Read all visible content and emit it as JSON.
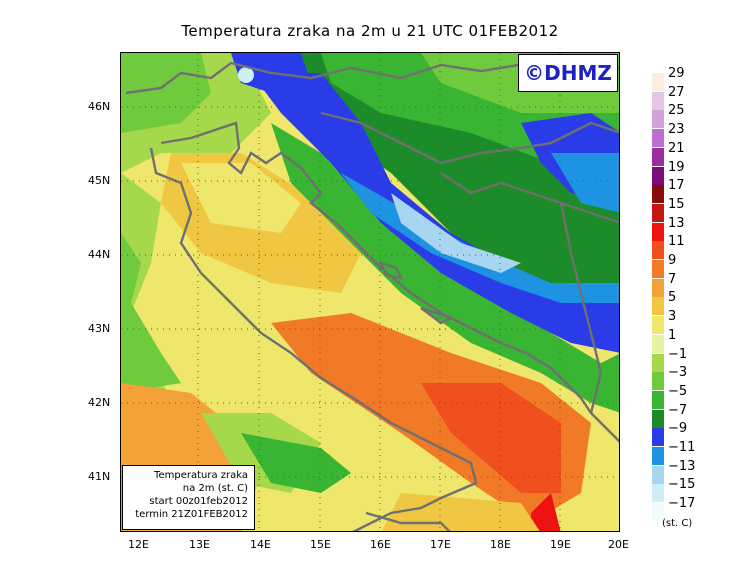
{
  "title": "Temperatura zraka na 2m u 21 UTC 01FEB2012",
  "logo_text": "©DHMZ",
  "info_box": {
    "line1": "Temperatura zraka",
    "line2": "na 2m (st. C)",
    "line3": "start 00z01feb2012",
    "line4": "termin 21Z01FEB2012"
  },
  "y_axis_labels": [
    "46N",
    "45N",
    "44N",
    "43N",
    "42N",
    "41N"
  ],
  "x_axis_labels": [
    "12E",
    "13E",
    "14E",
    "15E",
    "16E",
    "17E",
    "18E",
    "19E",
    "20E"
  ],
  "legend": {
    "unit": "(st. C)",
    "labels": [
      "29",
      "27",
      "25",
      "23",
      "21",
      "19",
      "17",
      "15",
      "13",
      "11",
      "9",
      "7",
      "5",
      "3",
      "1",
      "−1",
      "−3",
      "−5",
      "−7",
      "−9",
      "−11",
      "−13",
      "−15",
      "−17"
    ],
    "colors": [
      "#fbeede",
      "#e3c8e6",
      "#d3a2dd",
      "#bb6fce",
      "#9c2d9f",
      "#7c0a7a",
      "#8a0b0b",
      "#c41414",
      "#ee1313",
      "#f0501d",
      "#f07a28",
      "#f2a236",
      "#f0c742",
      "#efe66c",
      "#e7f2a5",
      "#a5d84a",
      "#6fcb3d",
      "#3ab433",
      "#1c8c2a",
      "#2a3ce8",
      "#1e93e2",
      "#a8d5ef",
      "#d0eef6",
      "#f0fbfe"
    ]
  }
}
